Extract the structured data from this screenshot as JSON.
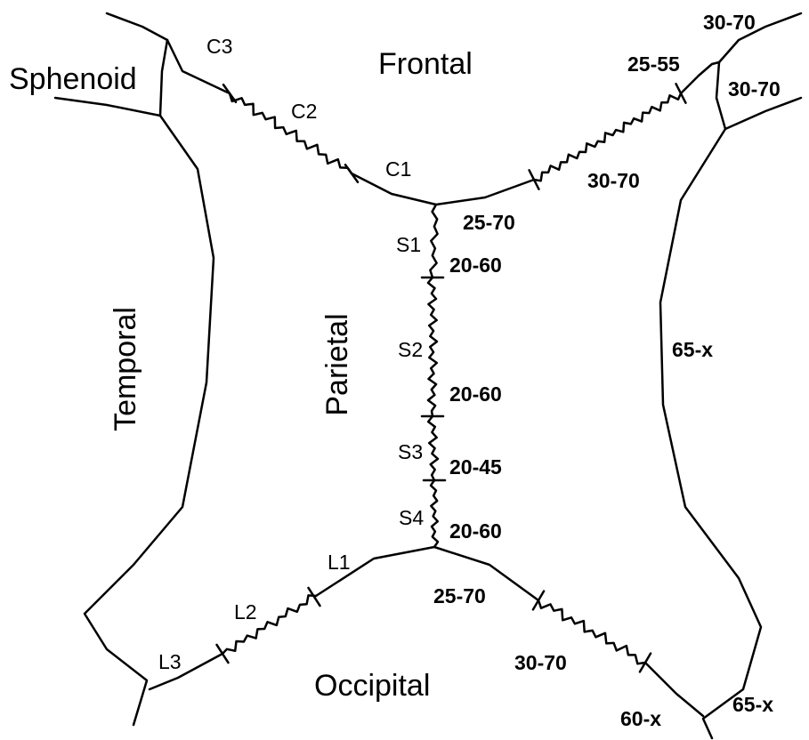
{
  "bones": [
    "Sphenoid",
    "Frontal",
    "Temporal",
    "Parietal",
    "Occipital"
  ],
  "segments": [
    "C3",
    "C2",
    "C1",
    "S1",
    "S2",
    "S3",
    "S4",
    "L1",
    "L2",
    "L3"
  ],
  "ranges": [
    "30-70",
    "25-55",
    "30-70",
    "30-70",
    "25-70",
    "20-60",
    "65-x",
    "20-60",
    "20-45",
    "20-60",
    "25-70",
    "30-70",
    "60-x",
    "65-x"
  ]
}
